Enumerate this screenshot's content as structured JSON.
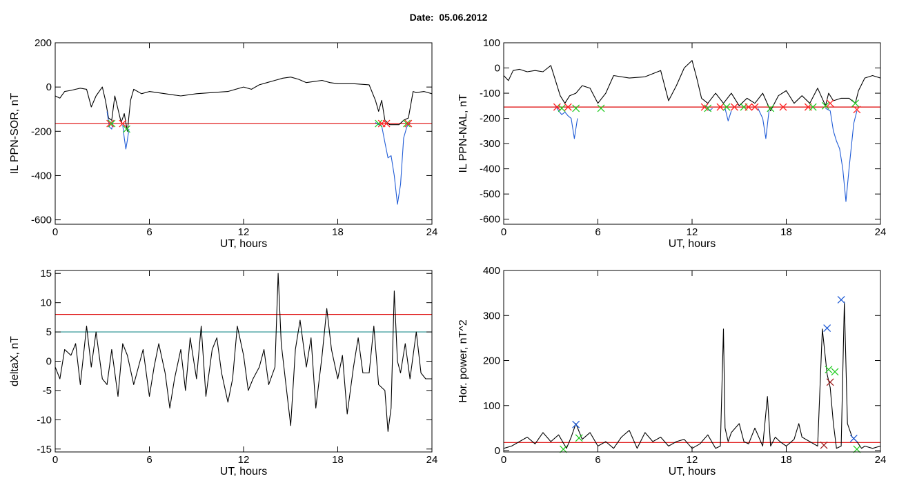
{
  "figure": {
    "title": "Date:  05.06.2012"
  },
  "chart_data": [
    {
      "id": "il-ppn-sor",
      "type": "line",
      "xlabel": "UT, hours",
      "ylabel": "IL PPN-SOR, nT",
      "xlim": [
        0,
        24
      ],
      "ylim": [
        -620,
        200
      ],
      "xticks": [
        0,
        6,
        12,
        18,
        24
      ],
      "yticks": [
        -600,
        -400,
        -200,
        0,
        200
      ],
      "threshold_lines": [
        {
          "y": -165,
          "color": "#dd0000"
        }
      ],
      "series": [
        {
          "color": "#000000",
          "x": [
            0,
            0.3,
            0.6,
            1,
            1.3,
            1.6,
            2,
            2.3,
            2.6,
            3,
            3.2,
            3.4,
            3.6,
            3.8,
            4.0,
            4.2,
            4.4,
            4.6,
            4.8,
            5,
            5.5,
            6,
            7,
            8,
            9,
            10,
            11,
            12,
            12.5,
            13,
            13.5,
            14,
            14.5,
            15,
            15.5,
            16,
            16.5,
            17,
            17.5,
            18,
            19,
            20,
            20.4,
            20.6,
            20.8,
            21,
            21.3,
            21.6,
            21.9,
            22.2,
            22.5,
            22.8,
            23,
            23.5,
            24
          ],
          "y": [
            -40,
            -50,
            -20,
            -15,
            -10,
            -5,
            -10,
            -90,
            -40,
            0,
            -60,
            -140,
            -150,
            -40,
            -100,
            -160,
            -120,
            -200,
            -60,
            -10,
            -30,
            -20,
            -30,
            -40,
            -30,
            -25,
            -20,
            0,
            -10,
            10,
            20,
            30,
            40,
            45,
            35,
            20,
            25,
            30,
            20,
            15,
            15,
            10,
            -60,
            -110,
            -60,
            -150,
            -170,
            -170,
            -170,
            -150,
            -140,
            -20,
            -25,
            -20,
            -30
          ]
        },
        {
          "color": "#1f5bd6",
          "x": [
            3.3,
            3.45,
            3.6,
            3.7
          ],
          "y": [
            -110,
            -180,
            -190,
            -150
          ]
        },
        {
          "color": "#1f5bd6",
          "x": [
            4.3,
            4.4,
            4.5,
            4.6,
            4.7
          ],
          "y": [
            -170,
            -230,
            -280,
            -240,
            -190
          ]
        },
        {
          "color": "#1f5bd6",
          "x": [
            20.4,
            20.6,
            20.8,
            21,
            21.2,
            21.4,
            21.6,
            21.8,
            22,
            22.2,
            22.4,
            22.6
          ],
          "y": [
            -160,
            -170,
            -175,
            -250,
            -320,
            -310,
            -400,
            -530,
            -440,
            -230,
            -180,
            -160
          ]
        }
      ],
      "markers": [
        {
          "x": 3.5,
          "y": -165,
          "color": "#ff2222"
        },
        {
          "x": 3.6,
          "y": -165,
          "color": "#22cc22"
        },
        {
          "x": 4.3,
          "y": -165,
          "color": "#ff2222"
        },
        {
          "x": 4.55,
          "y": -190,
          "color": "#22cc22"
        },
        {
          "x": 20.6,
          "y": -165,
          "color": "#22cc22"
        },
        {
          "x": 20.8,
          "y": -165,
          "color": "#ff2222"
        },
        {
          "x": 21.1,
          "y": -165,
          "color": "#ff2222"
        },
        {
          "x": 22.4,
          "y": -165,
          "color": "#22cc22"
        },
        {
          "x": 22.5,
          "y": -165,
          "color": "#ff2222"
        }
      ]
    },
    {
      "id": "il-ppn-nal",
      "type": "line",
      "xlabel": "UT, hours",
      "ylabel": "IL PPN-NAL, nT",
      "xlim": [
        0,
        24
      ],
      "ylim": [
        -620,
        100
      ],
      "xticks": [
        0,
        6,
        12,
        18,
        24
      ],
      "yticks": [
        -600,
        -500,
        -400,
        -300,
        -200,
        -100,
        0,
        100
      ],
      "threshold_lines": [
        {
          "y": -155,
          "color": "#dd0000"
        }
      ],
      "series": [
        {
          "color": "#000000",
          "x": [
            0,
            0.3,
            0.6,
            1,
            1.5,
            2,
            2.5,
            3,
            3.3,
            3.6,
            3.9,
            4.2,
            4.6,
            5,
            5.5,
            6,
            6.5,
            7,
            8,
            9,
            10,
            10.5,
            11,
            11.5,
            12,
            12.3,
            12.6,
            13,
            13.5,
            14,
            14.5,
            15,
            15.5,
            16,
            16.5,
            17,
            17.5,
            18,
            18.5,
            19,
            19.5,
            20,
            20.5,
            20.7,
            21,
            21.5,
            22,
            22.4,
            22.6,
            23,
            23.5,
            24
          ],
          "y": [
            -30,
            -50,
            -10,
            -5,
            -15,
            -10,
            -15,
            10,
            -50,
            -110,
            -140,
            -110,
            -100,
            -70,
            -80,
            -140,
            -100,
            -30,
            -40,
            -35,
            -10,
            -130,
            -70,
            0,
            30,
            -40,
            -120,
            -140,
            -100,
            -140,
            -100,
            -150,
            -120,
            -140,
            -100,
            -170,
            -110,
            -90,
            -140,
            -110,
            -140,
            -80,
            -150,
            -100,
            -130,
            -120,
            -120,
            -140,
            -90,
            -40,
            -30,
            -40
          ]
        },
        {
          "color": "#1f5bd6",
          "x": [
            3.3,
            3.5,
            3.7,
            3.9,
            4.1,
            4.3,
            4.5,
            4.7
          ],
          "y": [
            -150,
            -170,
            -185,
            -175,
            -190,
            -200,
            -280,
            -200
          ]
        },
        {
          "color": "#1f5bd6",
          "x": [
            12.9,
            13.1,
            13.3
          ],
          "y": [
            -150,
            -170,
            -160
          ]
        },
        {
          "color": "#1f5bd6",
          "x": [
            14.1,
            14.3,
            14.5
          ],
          "y": [
            -160,
            -210,
            -170
          ]
        },
        {
          "color": "#1f5bd6",
          "x": [
            16.2,
            16.5,
            16.7,
            16.9
          ],
          "y": [
            -160,
            -200,
            -280,
            -170
          ]
        },
        {
          "color": "#1f5bd6",
          "x": [
            20.5,
            20.8,
            21,
            21.2,
            21.4,
            21.6,
            21.8,
            22,
            22.3,
            22.5
          ],
          "y": [
            -160,
            -170,
            -250,
            -290,
            -320,
            -400,
            -530,
            -400,
            -220,
            -170
          ]
        }
      ],
      "markers": [
        {
          "x": 3.4,
          "y": -155,
          "color": "#ff2222"
        },
        {
          "x": 3.7,
          "y": -160,
          "color": "#22cc22"
        },
        {
          "x": 4.1,
          "y": -155,
          "color": "#ff2222"
        },
        {
          "x": 4.6,
          "y": -160,
          "color": "#22cc22"
        },
        {
          "x": 6.2,
          "y": -160,
          "color": "#22cc22"
        },
        {
          "x": 12.8,
          "y": -155,
          "color": "#ff2222"
        },
        {
          "x": 13.0,
          "y": -160,
          "color": "#22cc22"
        },
        {
          "x": 13.8,
          "y": -155,
          "color": "#ff2222"
        },
        {
          "x": 14.2,
          "y": -155,
          "color": "#22cc22"
        },
        {
          "x": 14.7,
          "y": -155,
          "color": "#ff2222"
        },
        {
          "x": 15.3,
          "y": -155,
          "color": "#22cc22"
        },
        {
          "x": 15.6,
          "y": -155,
          "color": "#ff2222"
        },
        {
          "x": 16.0,
          "y": -155,
          "color": "#ff2222"
        },
        {
          "x": 17.0,
          "y": -160,
          "color": "#22cc22"
        },
        {
          "x": 17.8,
          "y": -155,
          "color": "#ff2222"
        },
        {
          "x": 19.4,
          "y": -155,
          "color": "#ff2222"
        },
        {
          "x": 19.7,
          "y": -155,
          "color": "#22cc22"
        },
        {
          "x": 20.5,
          "y": -150,
          "color": "#22cc22"
        },
        {
          "x": 20.8,
          "y": -140,
          "color": "#ff2222"
        },
        {
          "x": 22.4,
          "y": -140,
          "color": "#22cc22"
        },
        {
          "x": 22.5,
          "y": -165,
          "color": "#ff2222"
        }
      ]
    },
    {
      "id": "delta-x",
      "type": "line",
      "xlabel": "UT, hours",
      "ylabel": "deltaX, nT",
      "xlim": [
        0,
        24
      ],
      "ylim": [
        -15.5,
        15.5
      ],
      "xticks": [
        0,
        6,
        12,
        18,
        24
      ],
      "yticks": [
        -15,
        -10,
        -5,
        0,
        5,
        10,
        15
      ],
      "threshold_lines": [
        {
          "y": 8,
          "color": "#dd0000"
        },
        {
          "y": 5,
          "color": "#1a8a8a"
        }
      ],
      "series": [
        {
          "color": "#000000",
          "x": [
            0,
            0.3,
            0.6,
            1,
            1.3,
            1.6,
            2,
            2.3,
            2.6,
            3,
            3.3,
            3.6,
            4,
            4.3,
            4.6,
            5,
            5.3,
            5.6,
            6,
            6.3,
            6.6,
            7,
            7.3,
            7.6,
            8,
            8.3,
            8.6,
            9,
            9.3,
            9.6,
            10,
            10.3,
            10.6,
            11,
            11.3,
            11.6,
            12,
            12.3,
            12.6,
            13,
            13.3,
            13.6,
            14,
            14.2,
            14.4,
            14.7,
            15,
            15.3,
            15.6,
            16,
            16.3,
            16.6,
            17,
            17.3,
            17.6,
            18,
            18.3,
            18.6,
            19,
            19.3,
            19.6,
            20,
            20.3,
            20.6,
            21,
            21.2,
            21.4,
            21.6,
            21.8,
            22,
            22.3,
            22.6,
            23,
            23.3,
            23.6,
            24
          ],
          "y": [
            -1,
            -3,
            2,
            1,
            3,
            -4,
            6,
            -1,
            5,
            -3,
            -4,
            2,
            -6,
            3,
            1,
            -4,
            -1,
            2,
            -6,
            -1,
            3,
            -2,
            -8,
            -3,
            2,
            -5,
            4,
            -3,
            6,
            -6,
            2,
            4,
            -2,
            -7,
            -3,
            6,
            1,
            -5,
            -3,
            -1,
            2,
            -4,
            -1,
            15,
            3,
            -4,
            -11,
            2,
            7,
            -1,
            4,
            -8,
            1,
            9,
            2,
            -3,
            1,
            -9,
            -1,
            4,
            -2,
            -2,
            6,
            -4,
            -5,
            -12,
            -8,
            12,
            0,
            -2,
            3,
            -3,
            5,
            -2,
            -3,
            -3
          ]
        }
      ],
      "markers": []
    },
    {
      "id": "hor-power",
      "type": "line",
      "xlabel": "UT, hours",
      "ylabel": "Hor. power, nT^2",
      "xlim": [
        0,
        24
      ],
      "ylim": [
        -3,
        400
      ],
      "xticks": [
        0,
        6,
        12,
        18,
        24
      ],
      "yticks": [
        0,
        100,
        200,
        300,
        400
      ],
      "threshold_lines": [
        {
          "y": 18,
          "color": "#dd0000"
        }
      ],
      "series": [
        {
          "color": "#000000",
          "x": [
            0,
            0.5,
            1,
            1.5,
            2,
            2.5,
            3,
            3.5,
            4,
            4.3,
            4.6,
            5,
            5.5,
            6,
            6.5,
            7,
            7.5,
            8,
            8.5,
            9,
            9.5,
            10,
            10.5,
            11,
            11.5,
            12,
            12.5,
            13,
            13.5,
            13.8,
            14,
            14.1,
            14.3,
            14.5,
            15,
            15.3,
            15.6,
            16,
            16.5,
            16.8,
            17,
            17.3,
            17.6,
            18,
            18.5,
            18.8,
            19,
            19.5,
            20,
            20.3,
            20.6,
            20.8,
            21,
            21.2,
            21.5,
            21.7,
            21.9,
            22.2,
            22.5,
            22.8,
            23,
            23.5,
            24
          ],
          "y": [
            5,
            10,
            20,
            30,
            15,
            40,
            20,
            35,
            5,
            30,
            60,
            25,
            40,
            10,
            20,
            5,
            30,
            45,
            5,
            40,
            20,
            30,
            10,
            20,
            25,
            5,
            15,
            35,
            5,
            10,
            270,
            50,
            20,
            40,
            60,
            20,
            15,
            50,
            10,
            120,
            10,
            30,
            20,
            10,
            25,
            60,
            30,
            20,
            10,
            270,
            170,
            140,
            60,
            5,
            10,
            330,
            60,
            30,
            20,
            5,
            10,
            5,
            10
          ]
        }
      ],
      "markers": [
        {
          "x": 3.8,
          "y": 3,
          "color": "#22cc22"
        },
        {
          "x": 4.6,
          "y": 58,
          "color": "#1f5bd6"
        },
        {
          "x": 4.8,
          "y": 28,
          "color": "#22cc22"
        },
        {
          "x": 20.4,
          "y": 12,
          "color": "#9b1b1b"
        },
        {
          "x": 20.6,
          "y": 272,
          "color": "#1f5bd6"
        },
        {
          "x": 20.7,
          "y": 180,
          "color": "#22cc22"
        },
        {
          "x": 20.8,
          "y": 152,
          "color": "#9b1b1b"
        },
        {
          "x": 21.1,
          "y": 175,
          "color": "#22cc22"
        },
        {
          "x": 21.5,
          "y": 335,
          "color": "#1f5bd6"
        },
        {
          "x": 22.3,
          "y": 27,
          "color": "#1f5bd6"
        },
        {
          "x": 22.5,
          "y": 3,
          "color": "#22cc22"
        }
      ]
    }
  ]
}
